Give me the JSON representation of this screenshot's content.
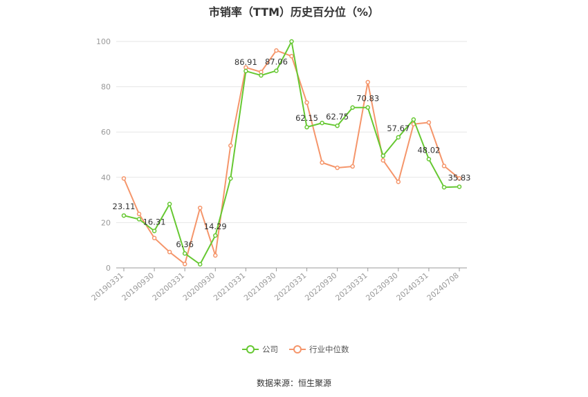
{
  "title": "市销率（TTM）历史百分位（%）",
  "source": "数据来源：恒生聚源",
  "colors": {
    "company": "#66c832",
    "industry": "#f5956a",
    "grid": "#e6e6e6",
    "axis": "#999999"
  },
  "chart_data": {
    "type": "line",
    "title": "市销率（TTM）历史百分位（%）",
    "ylim": [
      0,
      100
    ],
    "yticks": [
      "0",
      "20",
      "40",
      "60",
      "80",
      "100"
    ],
    "x_tick_labels": [
      "20190331",
      "20190930",
      "20200331",
      "20200930",
      "20210331",
      "20210930",
      "20220331",
      "20220930",
      "20230331",
      "20230930",
      "20240331",
      "20240708"
    ],
    "x_tick_positions": [
      0,
      2,
      4,
      6,
      8,
      10,
      12,
      14,
      16,
      18,
      20,
      22
    ],
    "grid": true,
    "legend_position": "bottom-center",
    "series": [
      {
        "name": "公司",
        "color": "#66c832",
        "values": [
          23.11,
          21.5,
          16.31,
          28.2,
          6.36,
          1.6,
          14.29,
          39.5,
          86.91,
          85.0,
          87.06,
          100.0,
          62.15,
          64.0,
          62.75,
          70.8,
          70.83,
          49.5,
          57.67,
          65.5,
          48.02,
          35.6,
          35.83
        ]
      },
      {
        "name": "行业中位数",
        "color": "#f5956a",
        "values": [
          39.5,
          23.8,
          13.2,
          7.0,
          1.7,
          26.5,
          5.5,
          54.0,
          88.5,
          86.5,
          96.0,
          93.5,
          73.0,
          46.5,
          44.2,
          44.8,
          82.0,
          47.5,
          38.0,
          63.5,
          64.2,
          45.0,
          39.5
        ]
      }
    ],
    "data_labels": [
      {
        "series": 0,
        "index": 0,
        "text": "23.11"
      },
      {
        "series": 0,
        "index": 2,
        "text": "16.31"
      },
      {
        "series": 0,
        "index": 4,
        "text": "6.36"
      },
      {
        "series": 0,
        "index": 6,
        "text": "14.29"
      },
      {
        "series": 0,
        "index": 8,
        "text": "86.91"
      },
      {
        "series": 0,
        "index": 10,
        "text": "87.06"
      },
      {
        "series": 0,
        "index": 12,
        "text": "62.15"
      },
      {
        "series": 0,
        "index": 14,
        "text": "62.75"
      },
      {
        "series": 0,
        "index": 16,
        "text": "70.83"
      },
      {
        "series": 0,
        "index": 18,
        "text": "57.67"
      },
      {
        "series": 0,
        "index": 20,
        "text": "48.02"
      },
      {
        "series": 0,
        "index": 22,
        "text": "35.83"
      }
    ]
  }
}
